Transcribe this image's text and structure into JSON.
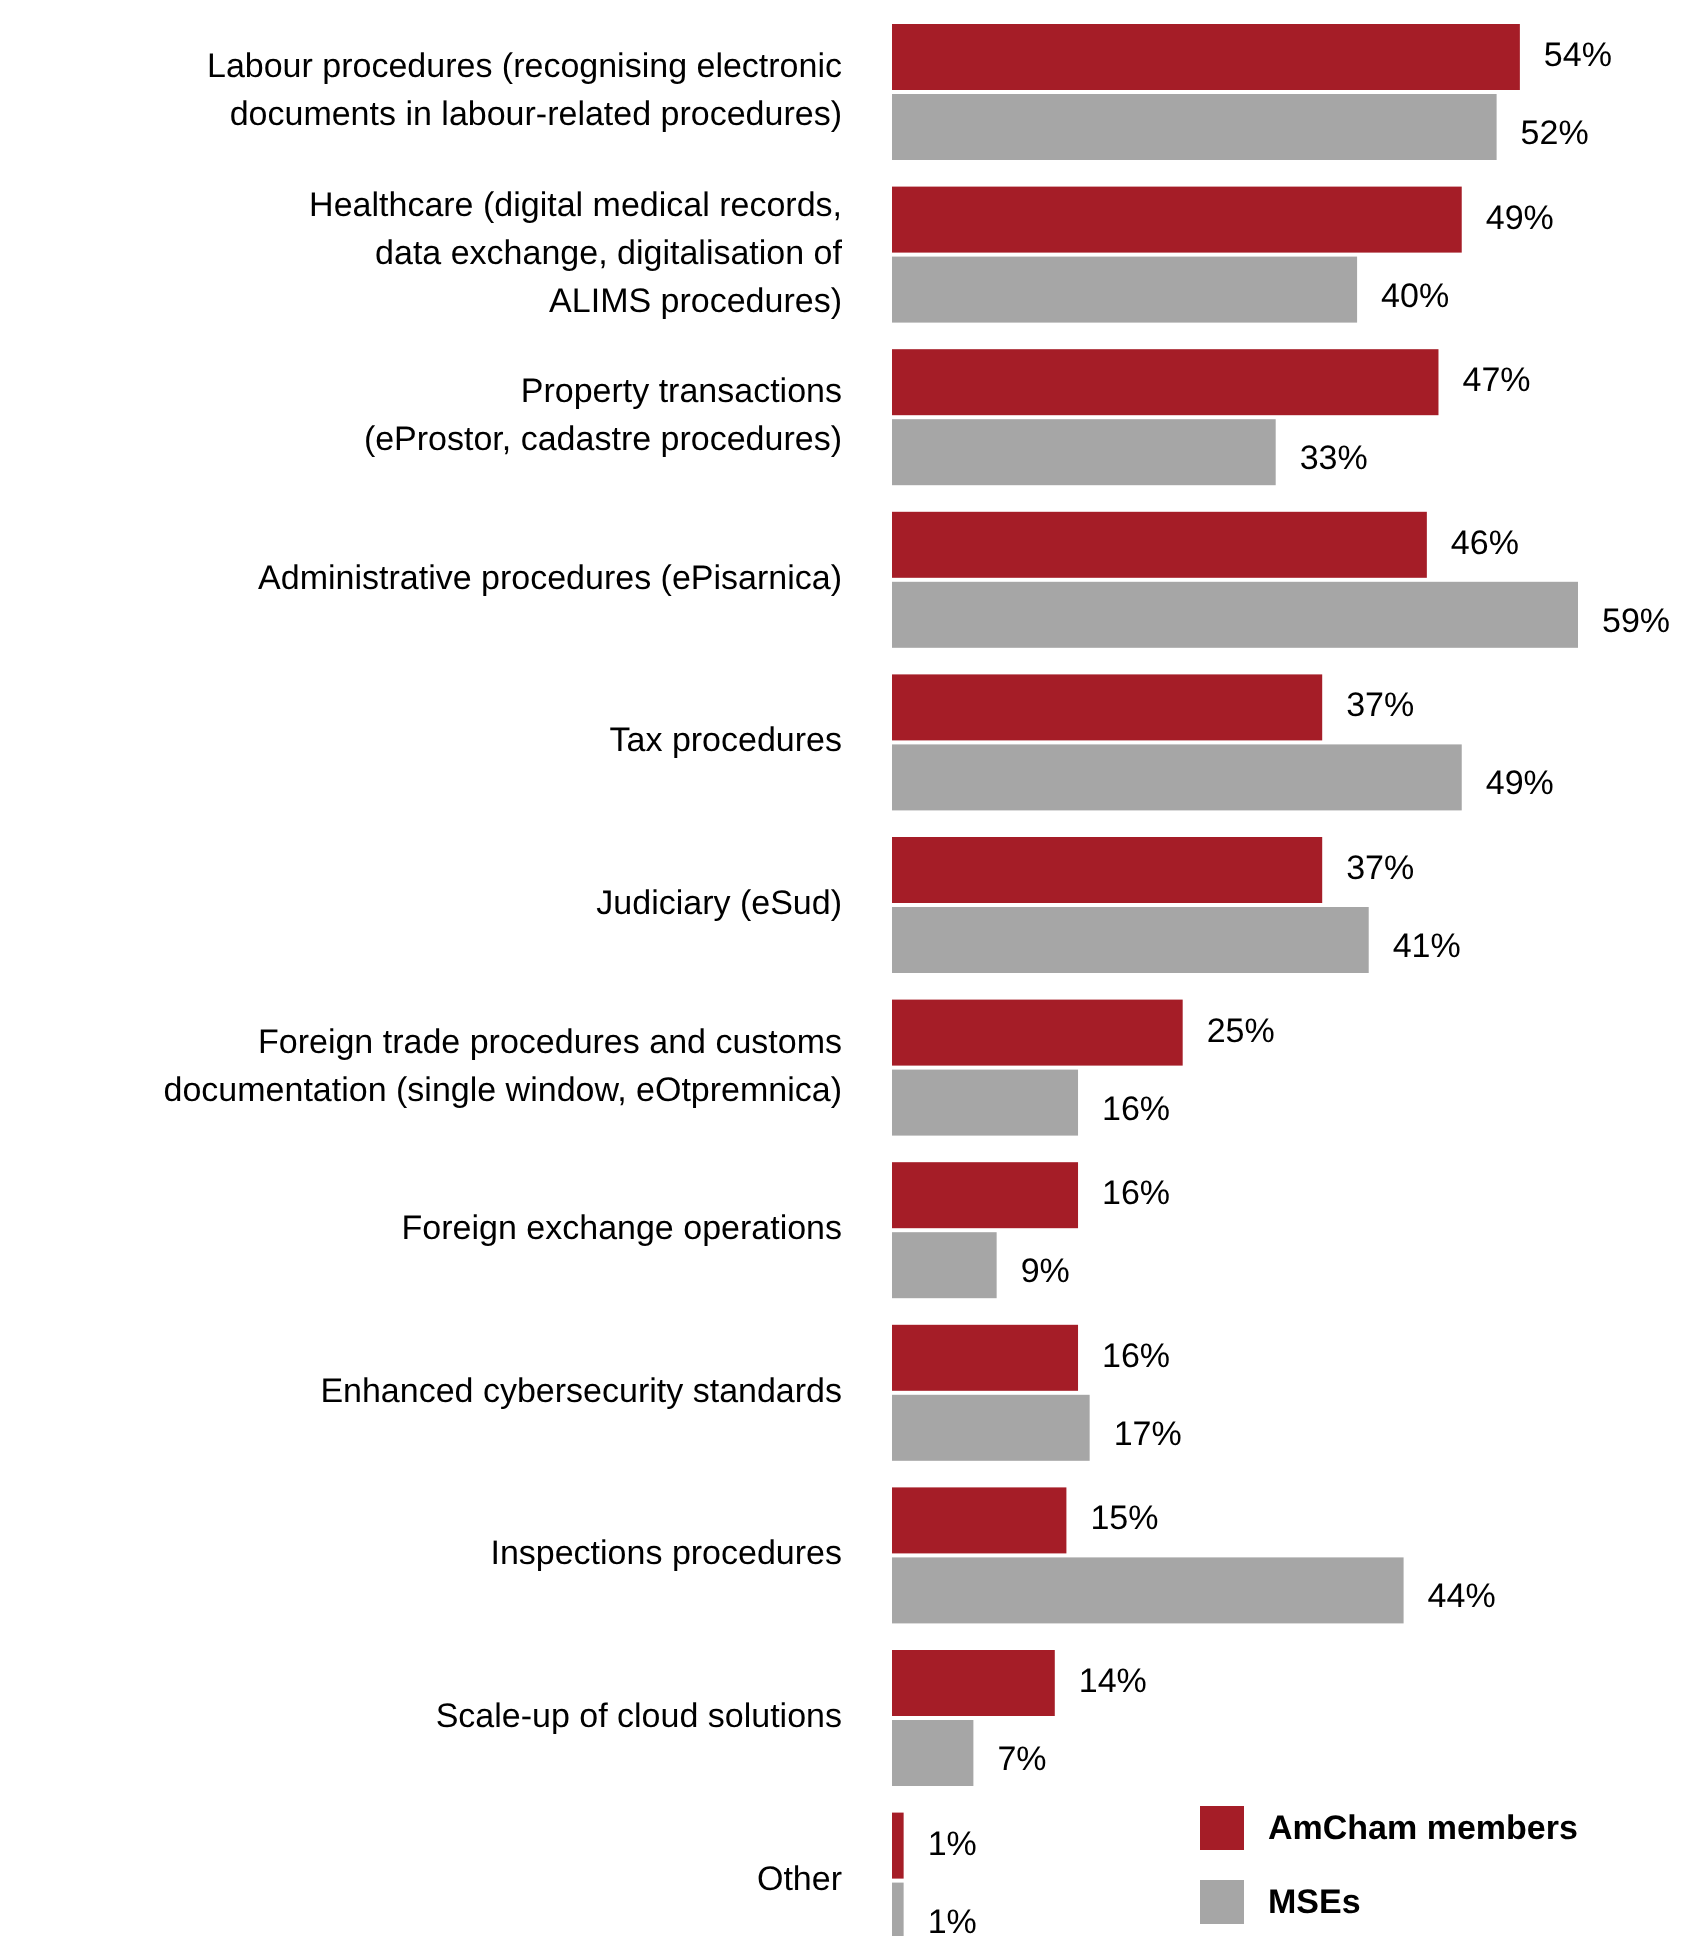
{
  "chart_data": {
    "type": "bar",
    "orientation": "horizontal",
    "legend": "bottom right",
    "tick_labels": "y",
    "categories": [
      "Labour procedures (recognising electronic\ndocuments in labour-related procedures)",
      "Healthcare (digital medical records,\ndata exchange, digitalisation of\nALIMS procedures)",
      "Property transactions\n(eProstor, cadastre procedures)",
      "Administrative procedures (ePisarnica)",
      "Tax procedures",
      "Judiciary (eSud)",
      "Foreign trade procedures and customs\ndocumentation (single window, eOtpremnica)",
      "Foreign exchange operations",
      "Enhanced cybersecurity standards",
      "Inspections procedures",
      "Scale-up of cloud solutions",
      "Other"
    ],
    "series": [
      {
        "name": "AmCham members",
        "color": "#a51d27",
        "values": [
          54,
          49,
          47,
          46,
          37,
          37,
          25,
          16,
          16,
          15,
          14,
          1
        ],
        "value_labels": [
          "54%",
          "49%",
          "47%",
          "46%",
          "37%",
          "37%",
          "25%",
          "16%",
          "16%",
          "15%",
          "14%",
          "1%"
        ]
      },
      {
        "name": "MSEs",
        "color": "#a6a6a6",
        "values": [
          52,
          40,
          33,
          59,
          49,
          41,
          16,
          9,
          17,
          44,
          7,
          1
        ],
        "value_labels": [
          "52%",
          "40%",
          "33%",
          "59%",
          "49%",
          "41%",
          "16%",
          "9%",
          "17%",
          "44%",
          "7%",
          "1%"
        ]
      }
    ]
  }
}
